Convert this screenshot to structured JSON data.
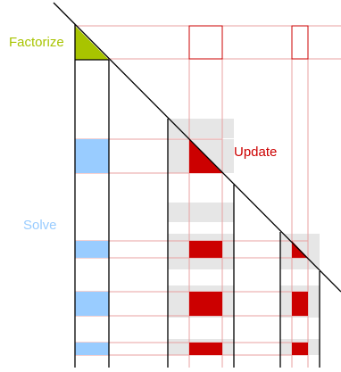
{
  "labels": {
    "factorize": "Factorize",
    "solve": "Solve",
    "update": "Update"
  },
  "colors": {
    "factorize": "#a8c400",
    "solve": "#99ccff",
    "update": "#cc0000",
    "guide_line": "#e8a0a0",
    "panel": "#e6e6e6",
    "outline": "#000000",
    "background": "#ffffff"
  }
}
